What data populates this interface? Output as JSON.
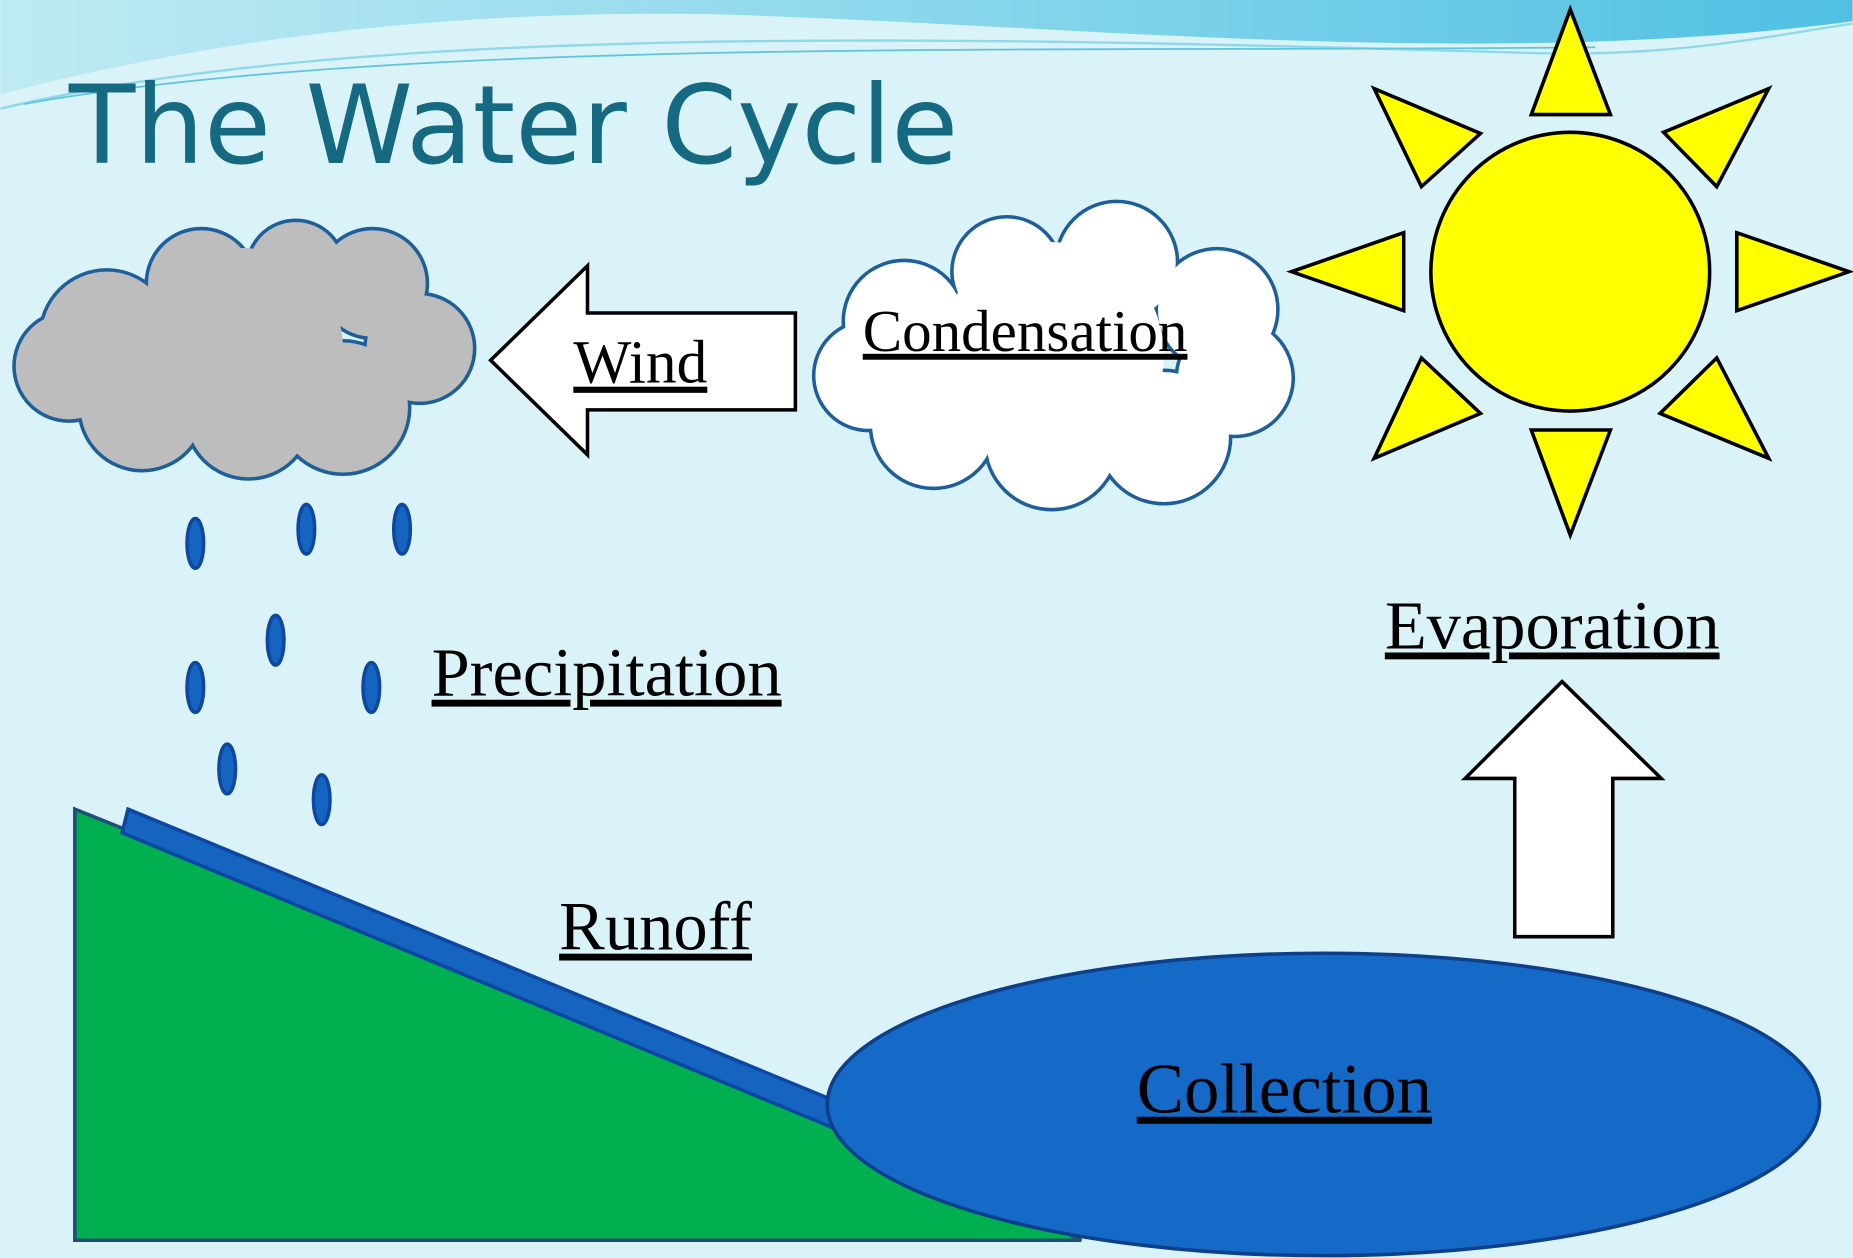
{
  "title": "The Water Cycle",
  "labels": {
    "wind": "Wind",
    "condensation": "Condensation",
    "precipitation": "Precipitation",
    "evaporation": "Evaporation",
    "runoff": "Runoff",
    "collection": "Collection"
  }
}
